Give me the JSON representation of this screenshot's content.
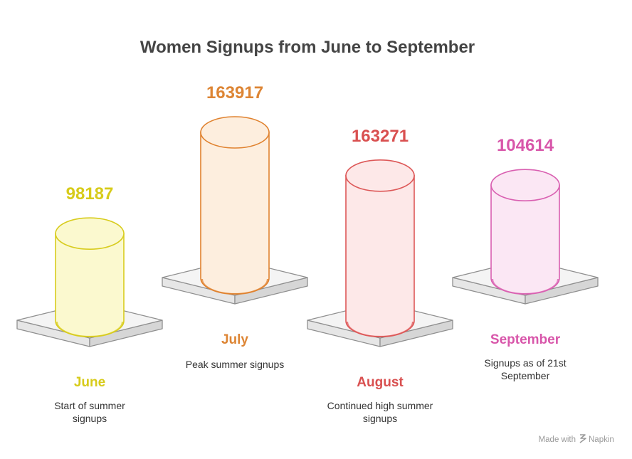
{
  "chart_data": {
    "type": "bar",
    "title": "Women Signups from June to September",
    "categories": [
      "June",
      "July",
      "August",
      "September"
    ],
    "values": [
      98187,
      163917,
      163271,
      104614
    ],
    "descriptions": [
      [
        "Start of summer",
        "signups"
      ],
      [
        "Peak summer signups"
      ],
      [
        "Continued high summer",
        "signups"
      ],
      [
        "Signups as of 21st",
        "September"
      ]
    ],
    "colors": [
      {
        "stroke": "#d8cc1e",
        "fill": "#fbf9cf",
        "label": "#d7cb1a"
      },
      {
        "stroke": "#e0822f",
        "fill": "#fdeede",
        "label": "#dd8534"
      },
      {
        "stroke": "#dd5858",
        "fill": "#fde8e8",
        "label": "#d95050"
      },
      {
        "stroke": "#d960b1",
        "fill": "#fbe7f4",
        "label": "#d856aa"
      }
    ]
  },
  "credit": {
    "prefix": "Made with",
    "brand": "Napkin",
    "icon": "napkin-logo-icon"
  }
}
